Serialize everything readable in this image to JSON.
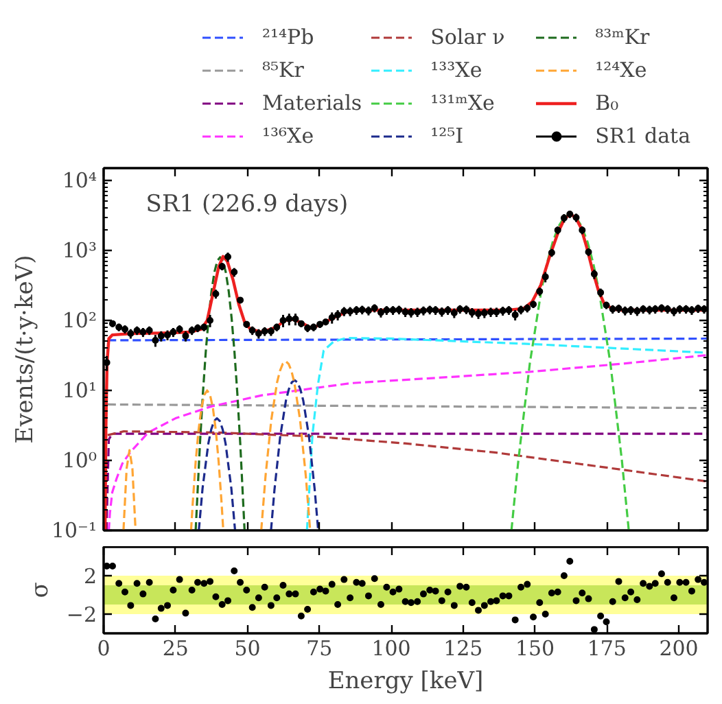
{
  "chart_data": [
    {
      "type": "line",
      "log": "y",
      "ylabel": "Events/(t·y·keV)",
      "annotations": [
        "SR1 (226.9 days)"
      ],
      "xlim": [
        0,
        210
      ],
      "xticks": [
        0,
        25,
        50,
        75,
        100,
        125,
        150,
        175,
        200
      ],
      "ylim": [
        0.1,
        15000
      ],
      "yticks": [
        {
          "value": 0.1,
          "label": "10⁻¹"
        },
        {
          "value": 1,
          "label": "10⁰"
        },
        {
          "value": 10,
          "label": "10¹"
        },
        {
          "value": 100,
          "label": "10²"
        },
        {
          "value": 1000,
          "label": "10³"
        },
        {
          "value": 10000,
          "label": "10⁴"
        }
      ],
      "tick_labels": "y",
      "legend": "top",
      "line_style": "dashed",
      "series": [
        {
          "name": "²¹⁴Pb",
          "color": "#3050ff",
          "x": [
            1.5,
            210
          ],
          "values": [
            52,
            55
          ]
        },
        {
          "name": "⁸⁵Kr",
          "color": "#999999",
          "x": [
            1.4,
            210
          ],
          "values": [
            6.3,
            5.6
          ]
        },
        {
          "name": "Materials",
          "color": "#800080",
          "x": [
            1.0,
            1.8,
            3,
            210
          ],
          "values": [
            0.1,
            2.0,
            2.4,
            2.4
          ]
        },
        {
          "name": "¹³⁶Xe",
          "color": "#ff33ff",
          "x": [
            1.8,
            2.2,
            3,
            4.5,
            6.5,
            9.2,
            15.5,
            25,
            37.4,
            55,
            86,
            120,
            148,
            180,
            210
          ],
          "values": [
            0.1,
            0.18,
            0.35,
            0.55,
            0.9,
            1.3,
            2.5,
            4,
            5.9,
            8.5,
            12.7,
            15.5,
            18.4,
            24,
            32
          ]
        },
        {
          "name": "Solar ν",
          "color": "#b03a3a",
          "x": [
            1.4,
            7,
            40,
            73.4,
            104.7,
            136,
            180,
            210
          ],
          "values": [
            2.3,
            2.6,
            2.5,
            2.2,
            1.75,
            1.3,
            0.74,
            0.5
          ]
        },
        {
          "name": "¹³³Xe",
          "color": "#33eeff",
          "x": [
            70.7,
            72.6,
            74.5,
            76.5,
            80,
            84.4,
            100,
            148.5,
            210
          ],
          "values": [
            0.1,
            2.3,
            12,
            37,
            50,
            56,
            55,
            46,
            34.5
          ]
        },
        {
          "name": "¹³¹ᵐXe",
          "color": "#44cc44",
          "x": [
            141.8,
            144.2,
            148.2,
            152.2,
            154.2,
            156.2,
            158.2,
            160.2,
            162.2,
            164.2,
            166.2,
            168.2,
            170.2,
            172.2,
            176.2,
            180.2,
            182.6
          ],
          "values": [
            0.1,
            1.0,
            24.5,
            270,
            666,
            1340,
            2210,
            2990,
            3300,
            2990,
            2210,
            1340,
            666,
            270,
            24.5,
            1.0,
            0.1
          ]
        },
        {
          "name": "¹²⁵I",
          "color": "#1c2a8c",
          "x": [
            33.1,
            34.4,
            36.4,
            37.4,
            38.4,
            39.4,
            40.4,
            41.4,
            42.4,
            44.4,
            45.7,
            52,
            58.2,
            59.4,
            61.4,
            63.4,
            64.4,
            65.4,
            66.4,
            67.4,
            68.4,
            69.4,
            71.4,
            73.4,
            74.6
          ],
          "values": [
            0.1,
            0.4,
            1.74,
            2.76,
            3.65,
            4,
            3.65,
            2.76,
            1.74,
            0.4,
            0.1,
            null,
            0.1,
            0.38,
            2.2,
            7.2,
            10.4,
            13.0,
            14,
            13.0,
            10.4,
            7.2,
            2.2,
            0.38,
            0.1
          ]
        },
        {
          "name": "⁸³ᵐKr",
          "color": "#1e6b1e",
          "x": [
            32,
            33.5,
            34.5,
            35.5,
            36.5,
            37.5,
            38.5,
            39.5,
            40.5,
            41.5,
            42.5,
            43.5,
            44.5,
            45.5,
            46.5,
            47.5,
            49
          ],
          "values": [
            0.1,
            1.75,
            8.9,
            35,
            108,
            260,
            485,
            706,
            800,
            706,
            485,
            260,
            108,
            35,
            8.9,
            1.75,
            0.1
          ]
        },
        {
          "name": "¹²⁴Xe",
          "color": "#ffa533",
          "x": [
            6.9,
            8,
            9,
            10,
            11.1,
            20,
            30.4,
            31,
            32,
            33,
            34,
            35,
            36,
            37,
            38,
            39,
            40,
            41,
            41.6,
            48,
            54.8,
            56.3,
            58.3,
            60.3,
            61.3,
            62.3,
            63.3,
            64.3,
            65.3,
            66.3,
            68.3,
            70.3,
            71.8
          ],
          "values": [
            0.1,
            0.77,
            1.4,
            0.77,
            0.1,
            null,
            0.1,
            0.25,
            0.95,
            2.7,
            5.6,
            8.6,
            10,
            8.6,
            5.6,
            2.7,
            0.95,
            0.25,
            0.1,
            null,
            0.1,
            0.6,
            3.8,
            13,
            19,
            24,
            26,
            24,
            19,
            13,
            3.8,
            0.6,
            0.1
          ]
        },
        {
          "name": "B₀",
          "color": "#ee2020",
          "line_style": "solid",
          "x": [
            0.5,
            0.8,
            1.2,
            1.8,
            3,
            10,
            20,
            30,
            34,
            36,
            38,
            40,
            41.5,
            43,
            45,
            47,
            49,
            51,
            55,
            60,
            63,
            66,
            69,
            72,
            75,
            80,
            85,
            90,
            100,
            140,
            146,
            149,
            152,
            155,
            158,
            160,
            162,
            164,
            166,
            168,
            170,
            172,
            174,
            177,
            180,
            210
          ],
          "values": [
            0.1,
            3,
            25,
            55,
            62,
            65,
            66,
            68,
            75,
            100,
            240,
            580,
            820,
            700,
            380,
            170,
            95,
            75,
            68,
            80,
            100,
            104,
            92,
            78,
            85,
            110,
            135,
            140,
            140,
            140,
            148,
            185,
            320,
            800,
            1800,
            2700,
            3300,
            3000,
            2100,
            1100,
            520,
            270,
            175,
            145,
            140,
            140
          ]
        },
        {
          "name": "SR1 data",
          "type": "scatter",
          "marker": "circle",
          "color": "#000000",
          "x": [
            1.1,
            3.1,
            5.3,
            7.4,
            9.4,
            11.6,
            13.7,
            15.9,
            18.0,
            20.0,
            22.2,
            24.2,
            26.4,
            28.5,
            30.7,
            32.7,
            34.9,
            37.0,
            39.0,
            41.2,
            43.2,
            45.4,
            47.5,
            49.7,
            51.7,
            53.9,
            56.0,
            58.2,
            60.2,
            62.4,
            64.5,
            66.7,
            68.7,
            70.9,
            73.0,
            75.2,
            77.2,
            79.4,
            81.4,
            83.6,
            85.7,
            87.9,
            89.9,
            92.1,
            94.2,
            96.4,
            98.4,
            100.6,
            102.7,
            104.9,
            106.9,
            109.1,
            111.2,
            113.4,
            115.4,
            117.6,
            119.7,
            121.9,
            123.9,
            126.1,
            128.1,
            130.3,
            132.4,
            134.6,
            136.6,
            138.8,
            140.9,
            143.1,
            145.1,
            147.3,
            149.4,
            151.6,
            153.6,
            155.8,
            157.9,
            160.1,
            162.1,
            164.3,
            166.4,
            168.6,
            170.6,
            172.8,
            174.8,
            177.0,
            179.1,
            181.3,
            183.3,
            185.5,
            187.6,
            189.8,
            191.8,
            194.0,
            196.1,
            198.3,
            200.3,
            202.5,
            204.5,
            206.7,
            208.8
          ],
          "values": [
            25,
            90,
            80,
            75,
            65,
            72,
            68,
            72,
            52,
            60,
            62,
            68,
            75,
            60,
            72,
            78,
            80,
            100,
            240,
            590,
            810,
            490,
            195,
            88,
            72,
            65,
            70,
            70,
            80,
            100,
            105,
            105,
            90,
            78,
            80,
            88,
            95,
            110,
            120,
            135,
            135,
            140,
            142,
            138,
            150,
            130,
            140,
            140,
            142,
            132,
            130,
            132,
            138,
            142,
            140,
            133,
            140,
            128,
            145,
            143,
            130,
            125,
            128,
            132,
            132,
            137,
            140,
            120,
            142,
            150,
            170,
            260,
            420,
            930,
            1950,
            2900,
            3300,
            2950,
            1950,
            950,
            460,
            250,
            165,
            145,
            148,
            138,
            140,
            136,
            145,
            142,
            145,
            150,
            145,
            135,
            145,
            145,
            140,
            148,
            145
          ],
          "errors": [
            6,
            10,
            10,
            10,
            10,
            10,
            10,
            10,
            10,
            10,
            10,
            10,
            10,
            10,
            10,
            10,
            10,
            20,
            35,
            70,
            120,
            70,
            20,
            10,
            10,
            10,
            10,
            10,
            10,
            20,
            20,
            20,
            10,
            10,
            10,
            10,
            10,
            20,
            20,
            20,
            20,
            20,
            20,
            20,
            20,
            20,
            20,
            20,
            20,
            20,
            20,
            20,
            20,
            20,
            20,
            20,
            20,
            20,
            20,
            20,
            20,
            20,
            20,
            20,
            20,
            20,
            20,
            20,
            20,
            20,
            20,
            35,
            70,
            120,
            250,
            400,
            400,
            400,
            250,
            120,
            70,
            35,
            20,
            20,
            20,
            20,
            20,
            20,
            20,
            20,
            20,
            20,
            20,
            20,
            20,
            20,
            20,
            20,
            20
          ]
        }
      ]
    },
    {
      "type": "scatter",
      "marker": "circle",
      "color": "#000000",
      "xlabel": "Energy [keV]",
      "ylabel": "σ",
      "xlim": [
        0,
        210
      ],
      "xticks": [
        0,
        25,
        50,
        75,
        100,
        125,
        150,
        175,
        200
      ],
      "ylim": [
        -4,
        5
      ],
      "yticks": [
        {
          "value": -2,
          "label": "−2"
        },
        2
      ],
      "bands": [
        {
          "axis": "y",
          "from": -2,
          "to": 2,
          "color": "#ffff99"
        },
        {
          "axis": "y",
          "from": -1,
          "to": 1,
          "color": "#c8e65a"
        }
      ],
      "x": [
        1.1,
        3.1,
        5.3,
        7.4,
        9.4,
        11.6,
        13.7,
        15.9,
        18.0,
        20.0,
        22.2,
        24.2,
        26.4,
        28.5,
        30.7,
        32.7,
        34.9,
        37.0,
        39.0,
        41.2,
        43.2,
        45.4,
        47.5,
        49.7,
        51.7,
        53.9,
        56.0,
        58.2,
        60.2,
        62.4,
        64.5,
        66.7,
        68.7,
        70.9,
        73.0,
        75.2,
        77.2,
        79.4,
        81.4,
        83.6,
        85.7,
        87.9,
        89.9,
        92.1,
        94.2,
        96.4,
        98.4,
        100.6,
        102.7,
        104.9,
        106.9,
        109.1,
        111.2,
        113.4,
        115.4,
        117.6,
        119.7,
        121.9,
        123.9,
        126.1,
        128.1,
        130.3,
        132.4,
        134.6,
        136.6,
        138.8,
        140.9,
        143.1,
        145.1,
        147.3,
        149.4,
        151.6,
        153.6,
        155.8,
        157.9,
        160.1,
        162.1,
        164.3,
        166.4,
        168.6,
        170.6,
        172.8,
        174.8,
        177.0,
        179.1,
        181.3,
        183.3,
        185.5,
        187.6,
        189.8,
        191.8,
        194.0,
        196.1,
        198.3,
        200.3,
        202.5,
        204.5,
        206.7,
        208.8
      ],
      "values": [
        3.0,
        3.0,
        1.2,
        0.3,
        -1.1,
        1.2,
        0.1,
        1.3,
        -2.5,
        -1.4,
        -1.1,
        0.5,
        1.6,
        -1.9,
        0.5,
        1.3,
        1.2,
        1.4,
        -0.2,
        -1.0,
        -0.6,
        2.5,
        1.3,
        0.5,
        -1.3,
        -0.3,
        0.8,
        -1.1,
        -0.3,
        1.0,
        0.1,
        0.1,
        -2.2,
        -1.5,
        0.3,
        0.6,
        0.4,
        1.1,
        -1.0,
        1.6,
        -0.3,
        1.3,
        1.2,
        -0.1,
        1.7,
        -1.0,
        0.8,
        0.3,
        0.6,
        -0.7,
        -0.8,
        -0.7,
        0.1,
        0.5,
        0.4,
        -0.6,
        0.3,
        -1.1,
        0.9,
        0.8,
        -0.8,
        -1.6,
        -1.1,
        -0.7,
        -0.6,
        -0.1,
        -0.1,
        -2.6,
        0.8,
        1.1,
        -2.3,
        -0.8,
        -2.0,
        0.2,
        0.3,
        2.0,
        3.5,
        -0.6,
        0.2,
        -0.4,
        -3.6,
        -2.2,
        -2.8,
        -0.7,
        1.4,
        -0.3,
        0.3,
        -0.5,
        1.2,
        0.9,
        1.2,
        2.2,
        1.3,
        -0.3,
        1.3,
        1.3,
        0.4,
        1.6,
        1.3
      ]
    }
  ]
}
